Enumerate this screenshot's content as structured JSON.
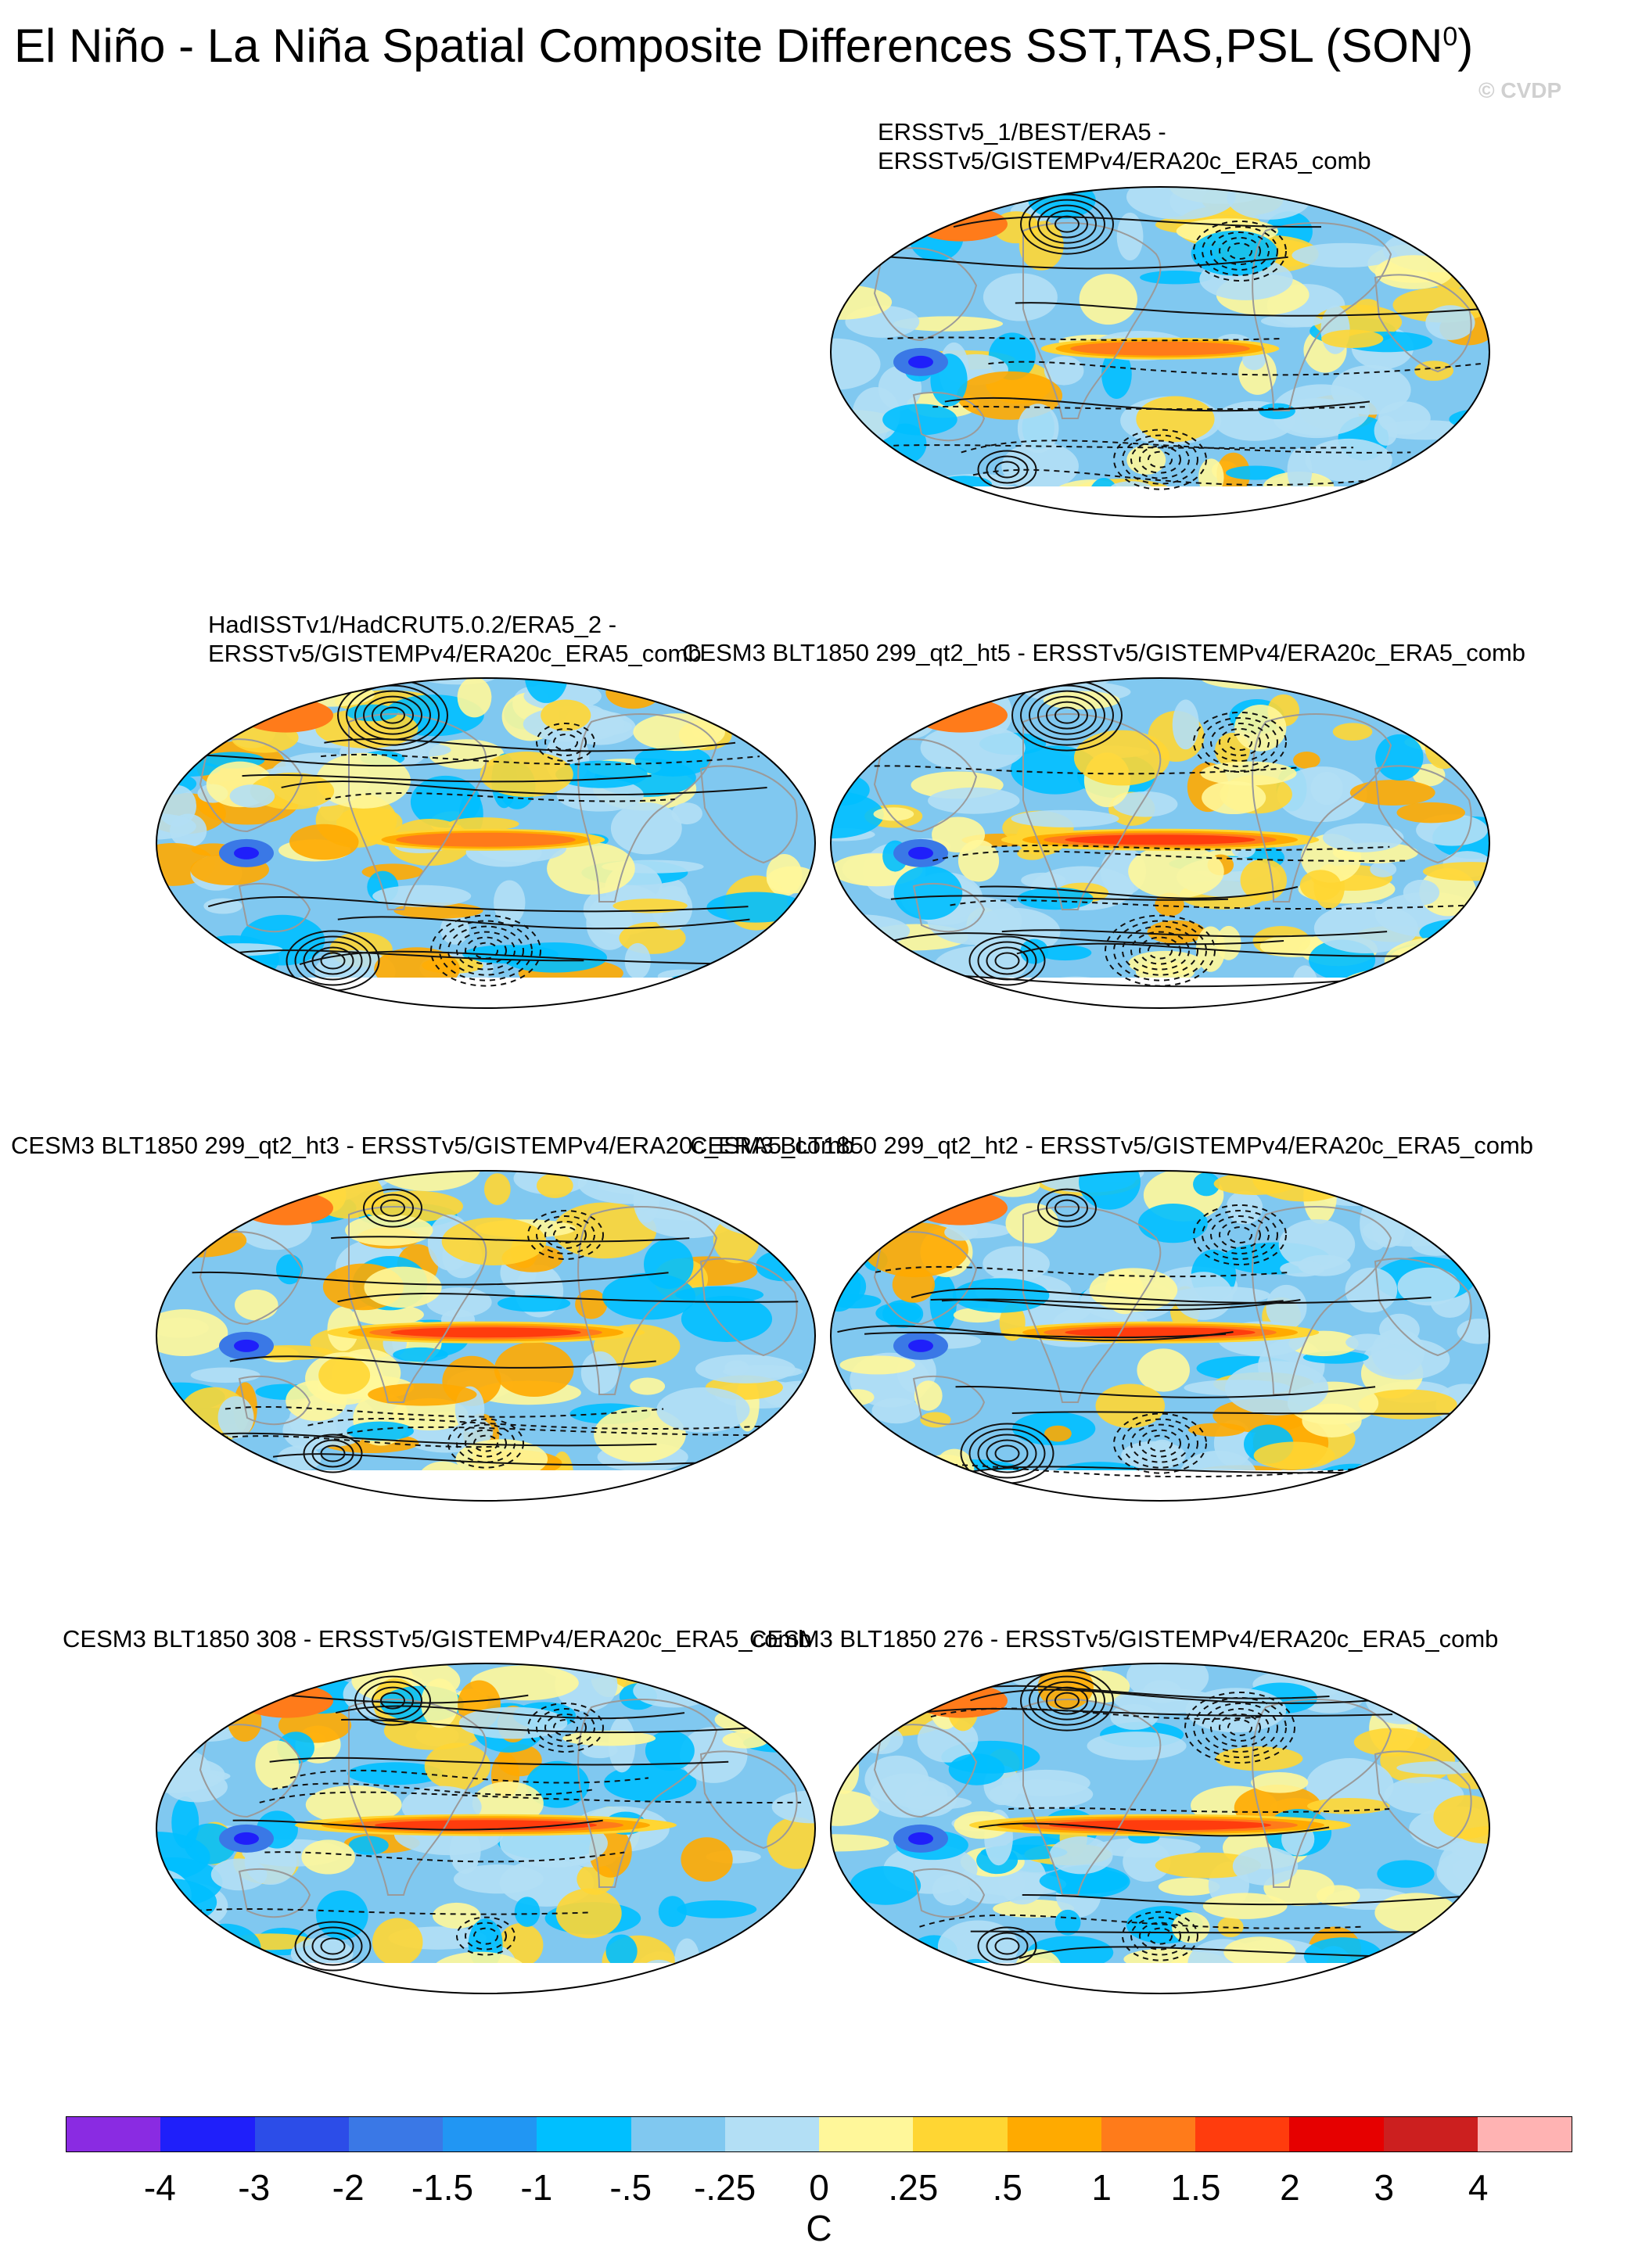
{
  "figure": {
    "title_main": "El Niño - La Niña Spatial Composite Differences SST,TAS,PSL (SON",
    "title_sup": "0",
    "title_close": ")",
    "copyright": "© CVDP"
  },
  "panels": [
    {
      "id": "p1",
      "label_lines": [
        "ERSSTv5_1/BEST/ERA5 -",
        "ERSSTv5/GISTEMPv4/ERA20c_ERA5_comb"
      ],
      "pattern": "obs",
      "seed": 3
    },
    {
      "id": "p2",
      "label_lines": [
        "HadISSTv1/HadCRUT5.0.2/ERA5_2 -",
        "ERSSTv5/GISTEMPv4/ERA20c_ERA5_comb"
      ],
      "pattern": "obs",
      "seed": 7
    },
    {
      "id": "p3",
      "label_lines": [
        "CESM3 BLT1850 299_qt2_ht5 - ERSSTv5/GISTEMPv4/ERA20c_ERA5_comb"
      ],
      "pattern": "model",
      "seed": 11
    },
    {
      "id": "p4",
      "label_lines": [
        "CESM3 BLT1850 299_qt2_ht3 - ERSSTv5/GISTEMPv4/ERA20c_ERA5_comb"
      ],
      "pattern": "model",
      "seed": 13
    },
    {
      "id": "p5",
      "label_lines": [
        "CESM3 BLT1850 299_qt2_ht2 - ERSSTv5/GISTEMPv4/ERA20c_ERA5_comb"
      ],
      "pattern": "model",
      "seed": 17
    },
    {
      "id": "p6",
      "label_lines": [
        "CESM3 BLT1850 308 - ERSSTv5/GISTEMPv4/ERA20c_ERA5_comb"
      ],
      "pattern": "strong",
      "seed": 19
    },
    {
      "id": "p7",
      "label_lines": [
        "CESM3 BLT1850 276 - ERSSTv5/GISTEMPv4/ERA20c_ERA5_comb"
      ],
      "pattern": "strong",
      "seed": 23
    }
  ],
  "colorbar": {
    "colors": [
      "#8a2be2",
      "#1f1ffa",
      "#2c4de8",
      "#3a78e6",
      "#2196f3",
      "#00bfff",
      "#80c8f0",
      "#b3dff5",
      "#fff79a",
      "#ffd633",
      "#ffaa00",
      "#ff7b1a",
      "#ff3c0d",
      "#e60000",
      "#cc1f1f",
      "#ffb3b3"
    ],
    "tick_labels": [
      "-4",
      "-3",
      "-2",
      "-1.5",
      "-1",
      "-.5",
      "-.25",
      "0",
      ".25",
      ".5",
      "1",
      "1.5",
      "2",
      "3",
      "4"
    ],
    "unit": "C"
  }
}
